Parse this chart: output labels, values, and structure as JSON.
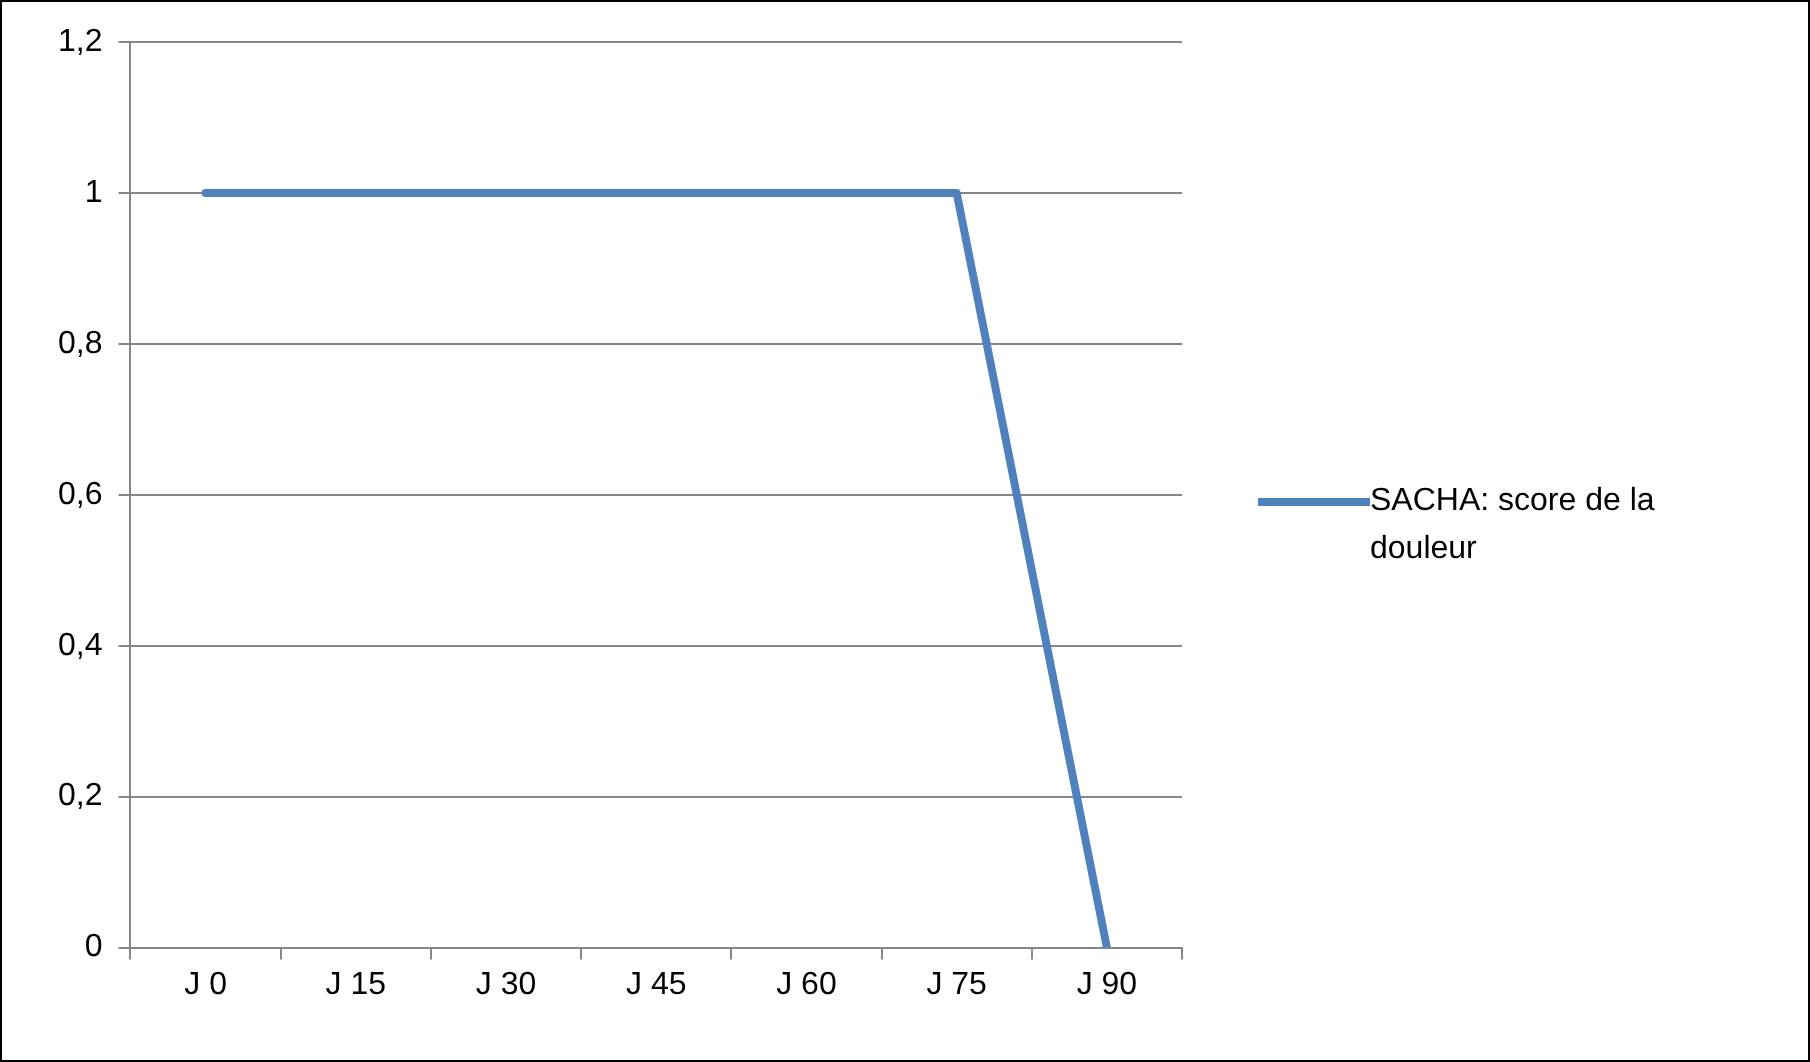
{
  "chart_data": {
    "type": "line",
    "categories": [
      "J 0",
      "J 15",
      "J 30",
      "J 45",
      "J 60",
      "J 75",
      "J 90"
    ],
    "series": [
      {
        "name": "SACHA: score de la douleur",
        "color": "#4f81bd",
        "values": [
          1,
          1,
          1,
          1,
          1,
          1,
          0
        ]
      }
    ],
    "ylim": [
      0,
      1.2
    ],
    "yticks": [
      "0",
      {
        "value": 0.2,
        "label": "0,2"
      },
      {
        "value": 0.4,
        "label": "0,4"
      },
      {
        "value": 0.6,
        "label": "0,6"
      },
      {
        "value": 0.8,
        "label": "0,8"
      },
      "1",
      {
        "value": 1.2,
        "label": "1,2"
      }
    ],
    "grid": "y",
    "legend": "right",
    "marker": "none",
    "line_style": "solid"
  }
}
